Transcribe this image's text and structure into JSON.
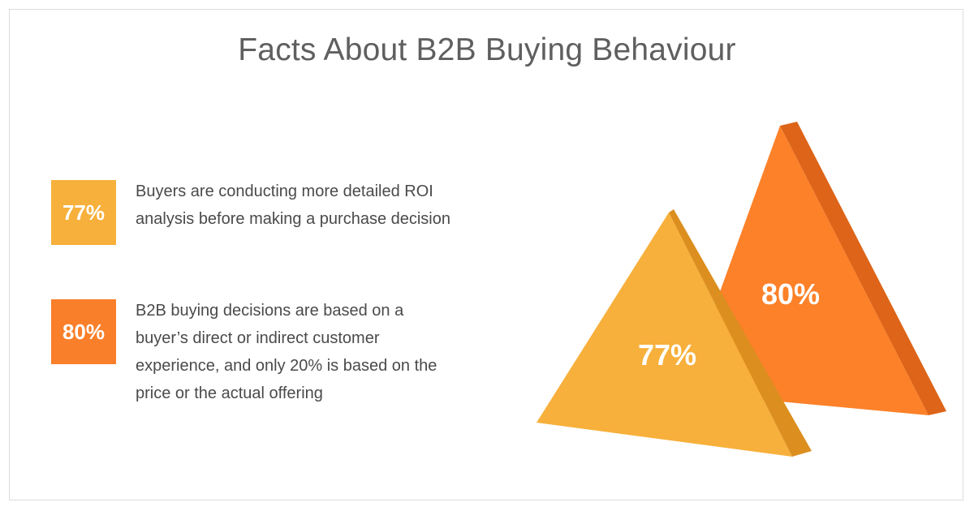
{
  "title": "Facts About B2B Buying Behaviour",
  "facts": [
    {
      "value": "77%",
      "text": "Buyers are conducting more detailed ROI analysis before making a purchase decision",
      "color": "#f7b03b"
    },
    {
      "value": "80%",
      "text": "B2B buying decisions are based on a buyer’s direct or indirect customer experience, and only 20% is based on the price or the actual offering",
      "color": "#f97f2a"
    }
  ],
  "pyramids": {
    "back_label": "80%",
    "front_label": "77%",
    "back_color": "#fc8129",
    "back_side_color": "#dd6418",
    "front_color": "#f7b03b",
    "front_side_color": "#dc8e1f"
  }
}
